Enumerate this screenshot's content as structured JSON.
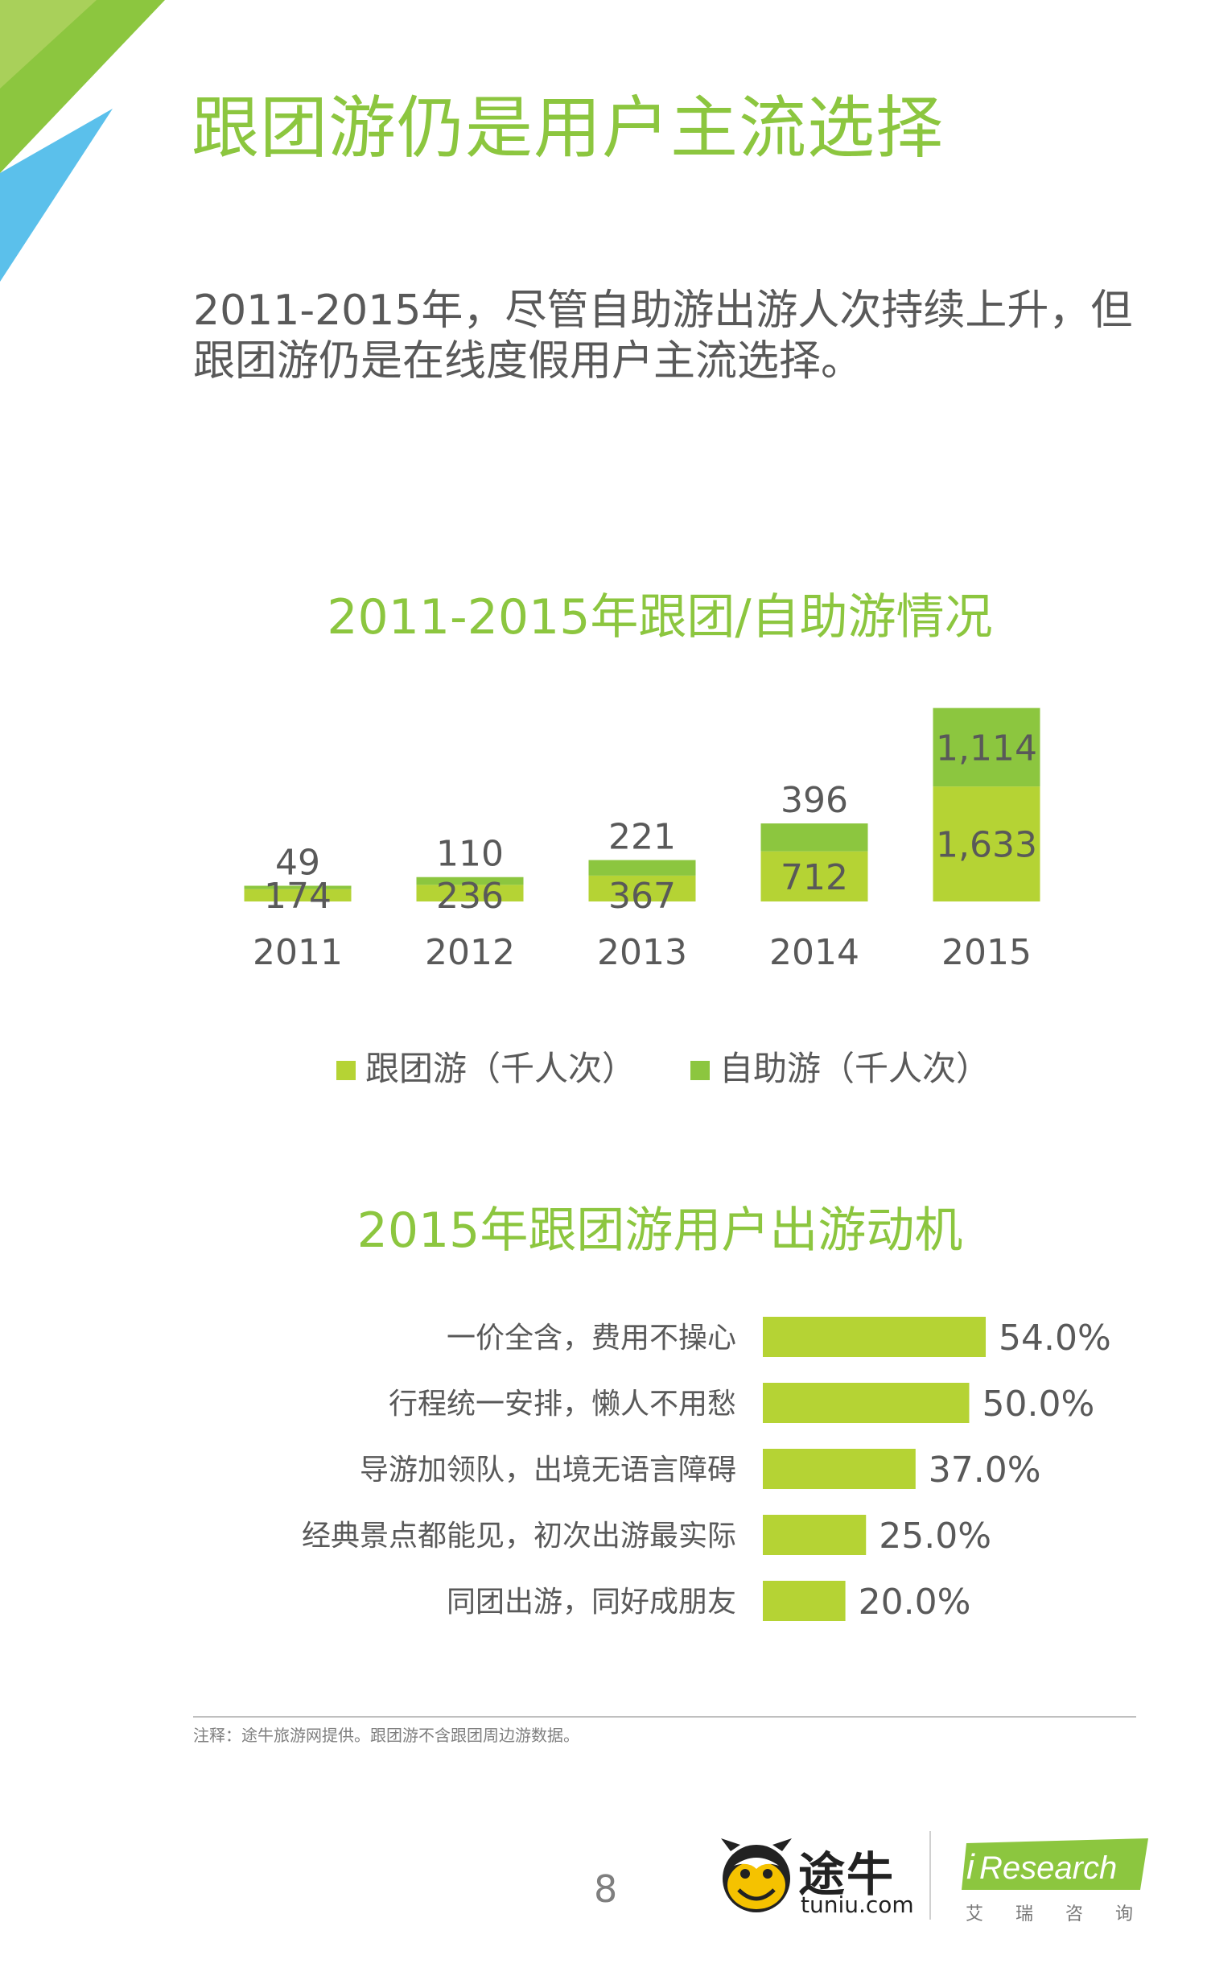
{
  "page": {
    "title": "跟团游仍是用户主流选择",
    "intro_lines": [
      "2011-2015年，尽管自助游出游人次持续上升，但",
      "跟团游仍是在线度假用户主流选择。"
    ],
    "footnote": "注释：途牛旅游网提供。跟团游不含跟团周边游数据。",
    "page_number": "8",
    "logos": {
      "tuniu_cn": "途牛",
      "tuniu_en": "tuniu.com",
      "iresearch_en": "Research",
      "iresearch_i": "i",
      "iresearch_cn": "艾瑞咨询"
    }
  },
  "colors": {
    "green_dark": "#8cc63f",
    "green_bar_group": "#8cc63f",
    "green_bar_self": "#b5d334",
    "text_gray": "#595959",
    "corner_blue": "#5bc0eb",
    "corner_green": "#8cc63f"
  },
  "chart_data": [
    {
      "type": "bar",
      "stacked": true,
      "title": "2011-2015年跟团/自助游情况",
      "categories": [
        "2011",
        "2012",
        "2013",
        "2014",
        "2015"
      ],
      "series": [
        {
          "name": "跟团游（千人次）",
          "values": [
            174,
            236,
            367,
            712,
            1633
          ],
          "value_labels": [
            "174",
            "236",
            "367",
            "712",
            "1,633"
          ],
          "color": "#b5d334"
        },
        {
          "name": "自助游（千人次）",
          "values": [
            49,
            110,
            221,
            396,
            1114
          ],
          "value_labels": [
            "49",
            "110",
            "221",
            "396",
            "1,114"
          ],
          "color": "#8cc63f"
        }
      ],
      "legend": "bottom",
      "grid": false
    },
    {
      "type": "bar",
      "orientation": "horizontal",
      "title": "2015年跟团游用户出游动机",
      "categories": [
        "一价全含，费用不操心",
        "行程统一安排，懒人不用愁",
        "导游加领队，出境无语言障碍",
        "经典景点都能见，初次出游最实际",
        "同团出游，同好成朋友"
      ],
      "values": [
        54.0,
        50.0,
        37.0,
        25.0,
        20.0
      ],
      "value_labels": [
        "54.0%",
        "50.0%",
        "37.0%",
        "25.0%",
        "20.0%"
      ],
      "color": "#b5d334",
      "grid": false
    }
  ]
}
